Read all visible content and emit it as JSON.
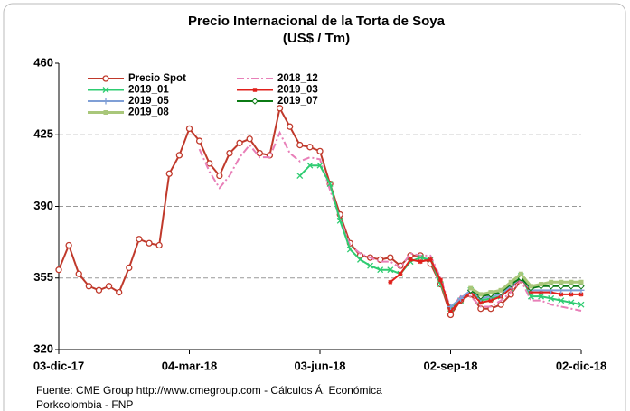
{
  "chart_data": {
    "type": "line",
    "title": "Precio Internacional de la Torta de Soya",
    "subtitle": "(US$ / Tm)",
    "source": "Fuente: CME  Group http://www.cmegroup.com - Cálculos Á. Económica",
    "source_2": "Porkcolombia - FNP",
    "x": [
      "2017-12-03",
      "2017-12-10",
      "2017-12-17",
      "2017-12-24",
      "2017-12-31",
      "2018-01-07",
      "2018-01-14",
      "2018-01-21",
      "2018-01-28",
      "2018-02-04",
      "2018-02-11",
      "2018-02-18",
      "2018-02-25",
      "2018-03-04",
      "2018-03-11",
      "2018-03-18",
      "2018-03-25",
      "2018-04-01",
      "2018-04-08",
      "2018-04-15",
      "2018-04-22",
      "2018-04-29",
      "2018-05-06",
      "2018-05-13",
      "2018-05-20",
      "2018-05-27",
      "2018-06-03",
      "2018-06-10",
      "2018-06-17",
      "2018-06-24",
      "2018-07-01",
      "2018-07-08",
      "2018-07-15",
      "2018-07-22",
      "2018-07-29",
      "2018-08-05",
      "2018-08-12",
      "2018-08-19",
      "2018-08-26",
      "2018-09-02",
      "2018-09-09",
      "2018-09-16",
      "2018-09-23",
      "2018-09-30",
      "2018-10-07",
      "2018-10-14",
      "2018-10-21",
      "2018-10-28",
      "2018-11-04",
      "2018-11-11",
      "2018-11-18",
      "2018-11-25",
      "2018-12-02"
    ],
    "xlim": [
      "2017-12-03",
      "2018-12-02"
    ],
    "xticks": [
      {
        "value": "2017-12-03",
        "label": "03-dic-17"
      },
      {
        "value": "2018-03-04",
        "label": "04-mar-18"
      },
      {
        "value": "2018-06-03",
        "label": "03-jun-18"
      },
      {
        "value": "2018-09-02",
        "label": "02-sep-18"
      },
      {
        "value": "2018-12-02",
        "label": "02-dic-18"
      }
    ],
    "ylim": [
      320,
      460
    ],
    "yticks": [
      320,
      355,
      390,
      425,
      460
    ],
    "grid": true,
    "series": [
      {
        "name": "Precio Spot",
        "color": "#c0392b",
        "marker": "circle",
        "values": [
          359,
          371,
          357,
          351,
          349,
          351,
          348,
          360,
          374,
          372,
          371,
          406,
          415,
          428,
          422,
          411,
          405,
          416,
          421,
          423,
          416,
          415,
          438,
          429,
          420,
          419,
          417,
          401,
          386,
          372,
          366,
          365,
          364,
          365,
          361,
          366,
          366,
          362,
          352,
          337,
          344,
          347,
          340,
          340,
          342,
          347,
          354,
          null,
          null,
          null,
          null,
          null,
          null
        ]
      },
      {
        "name": "2018_12",
        "color": "#e87fb8",
        "marker": "none",
        "dash": true,
        "values": [
          null,
          null,
          null,
          null,
          null,
          null,
          null,
          null,
          null,
          null,
          null,
          null,
          null,
          null,
          418,
          407,
          399,
          405,
          414,
          420,
          414,
          414,
          426,
          416,
          412,
          414,
          413,
          398,
          384,
          371,
          367,
          365,
          363,
          363,
          360,
          367,
          366,
          366,
          355,
          340,
          346,
          346,
          341,
          341,
          344,
          348,
          354,
          344,
          344,
          342,
          341,
          340,
          339
        ]
      },
      {
        "name": "2019_01",
        "color": "#2ecc71",
        "marker": "x",
        "values": [
          null,
          null,
          null,
          null,
          null,
          null,
          null,
          null,
          null,
          null,
          null,
          null,
          null,
          null,
          null,
          null,
          null,
          null,
          null,
          null,
          null,
          null,
          null,
          null,
          405,
          410,
          410,
          401,
          383,
          369,
          364,
          361,
          359,
          359,
          357,
          363,
          365,
          364,
          352,
          340,
          344,
          349,
          344,
          345,
          346,
          350,
          356,
          346,
          346,
          345,
          344,
          343,
          342
        ]
      },
      {
        "name": "2019_03",
        "color": "#e0201b",
        "marker": "star",
        "values": [
          null,
          null,
          null,
          null,
          null,
          null,
          null,
          null,
          null,
          null,
          null,
          null,
          null,
          null,
          null,
          null,
          null,
          null,
          null,
          null,
          null,
          null,
          null,
          null,
          null,
          null,
          null,
          null,
          null,
          null,
          null,
          null,
          null,
          353,
          357,
          364,
          363,
          364,
          354,
          339,
          344,
          348,
          343,
          344,
          346,
          350,
          355,
          348,
          348,
          348,
          347,
          347,
          347
        ]
      },
      {
        "name": "2019_05",
        "color": "#7f9fd6",
        "marker": "plus",
        "values": [
          null,
          null,
          null,
          null,
          null,
          null,
          null,
          null,
          null,
          null,
          null,
          null,
          null,
          null,
          null,
          null,
          null,
          null,
          null,
          null,
          null,
          null,
          null,
          null,
          null,
          null,
          null,
          null,
          null,
          null,
          null,
          null,
          null,
          null,
          null,
          null,
          null,
          null,
          null,
          341,
          345,
          349,
          345,
          346,
          347,
          351,
          355,
          349,
          349,
          349,
          349,
          349,
          349
        ]
      },
      {
        "name": "2019_07",
        "color": "#0b7a14",
        "marker": "diamond",
        "values": [
          null,
          null,
          null,
          null,
          null,
          null,
          null,
          null,
          null,
          null,
          null,
          null,
          null,
          null,
          null,
          null,
          null,
          null,
          null,
          null,
          null,
          null,
          null,
          null,
          null,
          null,
          null,
          null,
          null,
          null,
          null,
          null,
          null,
          null,
          null,
          null,
          null,
          null,
          null,
          null,
          null,
          349,
          346,
          347,
          348,
          352,
          355,
          350,
          351,
          351,
          351,
          351,
          351
        ]
      },
      {
        "name": "2019_08",
        "color": "#a9c77a",
        "marker": "square",
        "values": [
          null,
          null,
          null,
          null,
          null,
          null,
          null,
          null,
          null,
          null,
          null,
          null,
          null,
          null,
          null,
          null,
          null,
          null,
          null,
          null,
          null,
          null,
          null,
          null,
          null,
          null,
          null,
          null,
          null,
          null,
          null,
          null,
          null,
          null,
          null,
          null,
          null,
          null,
          null,
          null,
          null,
          350,
          347,
          348,
          349,
          353,
          357,
          351,
          352,
          353,
          353,
          353,
          353
        ]
      }
    ]
  }
}
